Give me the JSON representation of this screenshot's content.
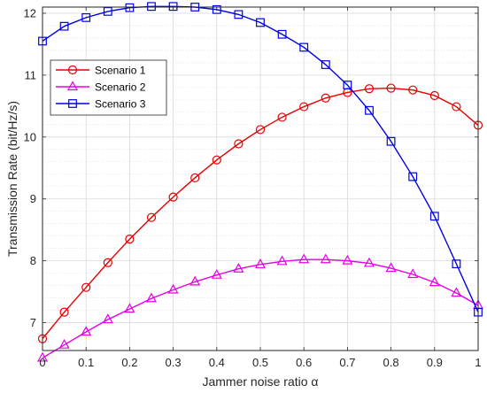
{
  "chart_data": {
    "type": "line",
    "xlabel": "Jammer noise ratio α",
    "ylabel": "Transmission Rate (bit/Hz/s)",
    "xlim": [
      0,
      1
    ],
    "ylim": [
      6.55,
      12.1
    ],
    "xticks": [
      "0",
      "0.1",
      "0.2",
      "0.3",
      "0.4",
      "0.5",
      "0.6",
      "0.7",
      "0.8",
      "0.9",
      "1"
    ],
    "xtick_values": [
      0,
      0.1,
      0.2,
      0.3,
      0.4,
      0.5,
      0.6,
      0.7,
      0.8,
      0.9,
      1
    ],
    "yticks": [
      "7",
      "8",
      "9",
      "10",
      "11",
      "12"
    ],
    "ytick_values": [
      7,
      8,
      9,
      10,
      11,
      12
    ],
    "minor_grid_y": [
      7.2,
      7.4,
      7.6,
      7.8,
      8.2,
      8.4,
      8.6,
      8.8,
      9.2,
      9.4,
      9.6,
      9.8,
      10.2,
      10.4,
      10.6,
      10.8,
      11.2,
      11.4,
      11.6,
      11.8
    ],
    "grid": true,
    "legend_position": "top-left",
    "x": [
      0,
      0.05,
      0.1,
      0.15,
      0.2,
      0.25,
      0.3,
      0.35,
      0.4,
      0.45,
      0.5,
      0.55,
      0.6,
      0.65,
      0.7,
      0.75,
      0.8,
      0.85,
      0.9,
      0.95,
      1
    ],
    "series": [
      {
        "name": "Scenario 1",
        "color": "#e60000",
        "marker": "circle",
        "values": [
          6.74,
          7.17,
          7.57,
          7.97,
          8.35,
          8.7,
          9.03,
          9.34,
          9.63,
          9.89,
          10.12,
          10.32,
          10.49,
          10.63,
          10.72,
          10.78,
          10.79,
          10.76,
          10.67,
          10.49,
          10.19
        ]
      },
      {
        "name": "Scenario 2",
        "color": "#e600e6",
        "marker": "triangle",
        "values": [
          6.43,
          6.64,
          6.85,
          7.05,
          7.22,
          7.39,
          7.53,
          7.66,
          7.77,
          7.87,
          7.94,
          7.99,
          8.02,
          8.02,
          8.0,
          7.96,
          7.88,
          7.78,
          7.65,
          7.48,
          7.28
        ]
      },
      {
        "name": "Scenario 3",
        "color": "#0000e6",
        "marker": "square",
        "values": [
          11.55,
          11.79,
          11.93,
          12.03,
          12.09,
          12.11,
          12.11,
          12.1,
          12.06,
          11.98,
          11.85,
          11.66,
          11.45,
          11.17,
          10.84,
          10.43,
          9.93,
          9.36,
          8.72,
          7.95,
          7.17
        ]
      }
    ]
  }
}
